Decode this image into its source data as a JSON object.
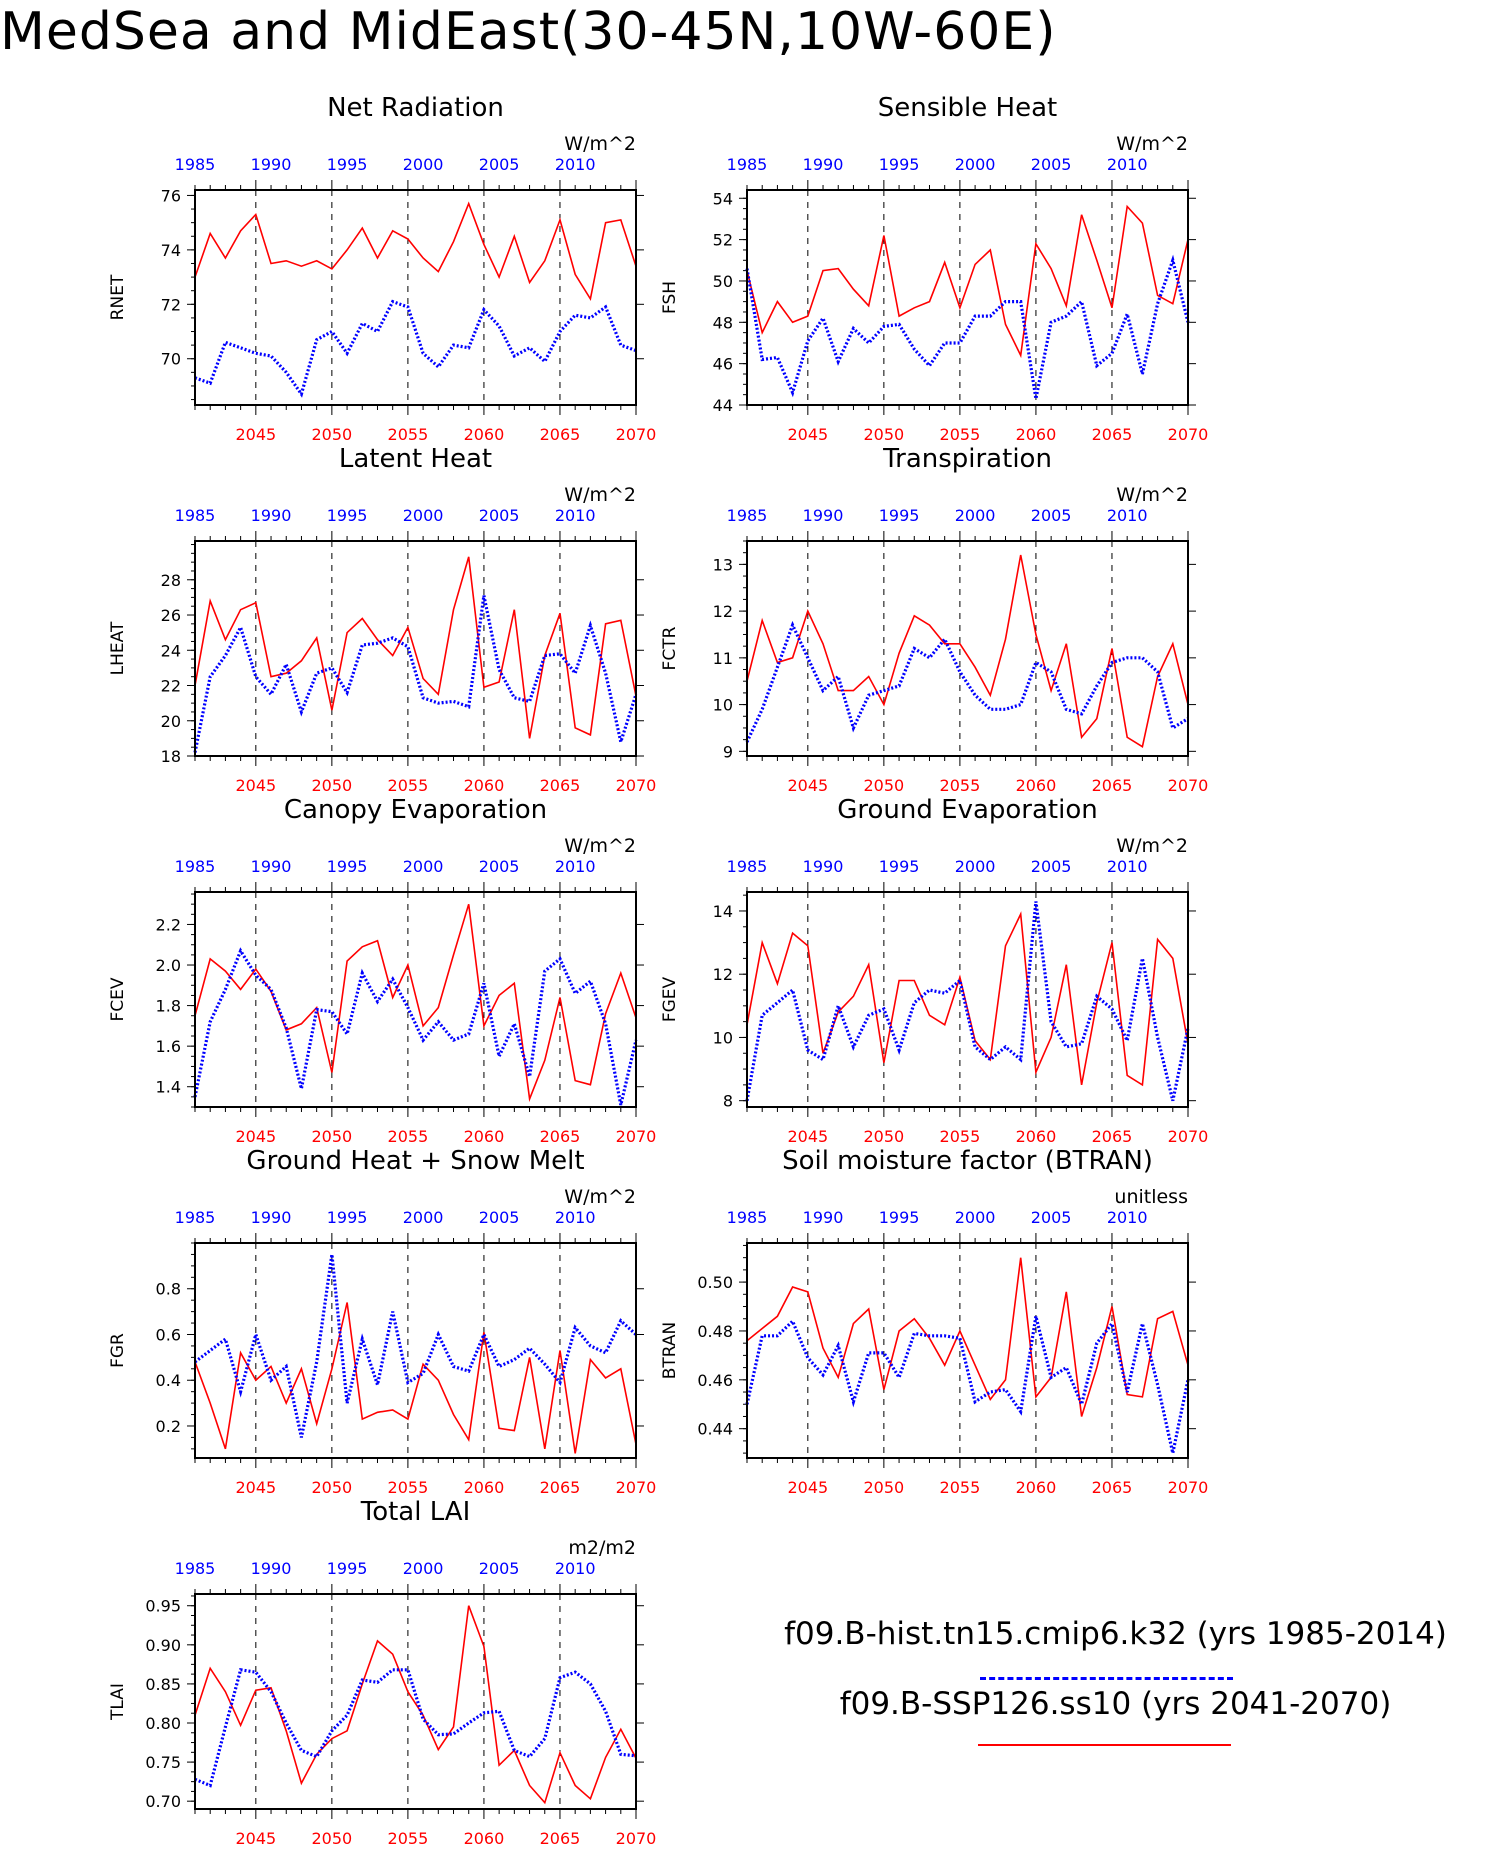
{
  "title": "MedSea and MidEast(30-45N,10W-60E)",
  "legend": {
    "hist_label": "f09.B-hist.tn15.cmip6.k32 (yrs 1985-2014)",
    "ssp_label": "f09.B-SSP126.ss10 (yrs 2041-2070)"
  },
  "colors": {
    "hist": "#0000ff",
    "ssp": "#ff0000",
    "axis": "#000000"
  },
  "chart_data": [
    {
      "type": "line",
      "title": "Net Radiation",
      "ylabel": "RNET",
      "units": "W/m^2",
      "ylim": [
        68.3,
        76.2
      ],
      "yticks": [
        70.0,
        72.0,
        74.0,
        76.0
      ],
      "top_axis_ticks": [
        1985,
        1990,
        1995,
        2000,
        2005,
        2010
      ],
      "bottom_axis_ticks": [
        2045,
        2050,
        2055,
        2060,
        2065,
        2070
      ],
      "series": [
        {
          "values": [
            69.3,
            69.1,
            70.6,
            70.4,
            70.2,
            70.1,
            69.5,
            68.7,
            70.7,
            71.0,
            70.2,
            71.3,
            71.0,
            72.1,
            71.9,
            70.2,
            69.7,
            70.5,
            70.4,
            71.8,
            71.2,
            70.1,
            70.4,
            69.9,
            71.0,
            71.6,
            71.5,
            71.9,
            70.5,
            70.3
          ]
        },
        {
          "values": [
            73.0,
            74.6,
            73.7,
            74.7,
            75.3,
            73.5,
            73.6,
            73.4,
            73.6,
            73.3,
            74.0,
            74.8,
            73.7,
            74.7,
            74.4,
            73.7,
            73.2,
            74.3,
            75.7,
            74.2,
            73.0,
            74.5,
            72.8,
            73.6,
            75.1,
            73.1,
            72.2,
            75.0,
            75.1,
            73.4
          ]
        }
      ]
    },
    {
      "type": "line",
      "title": "Sensible Heat",
      "ylabel": "FSH",
      "units": "W/m^2",
      "ylim": [
        44.0,
        54.4
      ],
      "yticks": [
        44.0,
        46.0,
        48.0,
        50.0,
        52.0,
        54.0
      ],
      "top_axis_ticks": [
        1985,
        1990,
        1995,
        2000,
        2005,
        2010
      ],
      "bottom_axis_ticks": [
        2045,
        2050,
        2055,
        2060,
        2065,
        2070
      ],
      "series": [
        {
          "values": [
            50.6,
            46.2,
            46.3,
            44.6,
            47.1,
            48.2,
            46.1,
            47.7,
            47.0,
            47.8,
            47.9,
            46.7,
            45.9,
            47.0,
            47.0,
            48.3,
            48.3,
            49.0,
            49.0,
            44.3,
            48.0,
            48.3,
            49.0,
            45.9,
            46.5,
            48.4,
            45.5,
            48.9,
            51.0,
            48.0
          ]
        },
        {
          "values": [
            50.5,
            47.5,
            49.0,
            48.0,
            48.3,
            50.5,
            50.6,
            49.6,
            48.8,
            52.2,
            48.3,
            48.7,
            49.0,
            50.9,
            48.7,
            50.8,
            51.5,
            47.9,
            46.4,
            51.8,
            50.6,
            48.8,
            53.2,
            51.0,
            48.7,
            53.6,
            52.8,
            49.3,
            48.9,
            52.0
          ]
        }
      ]
    },
    {
      "type": "line",
      "title": "Latent Heat",
      "ylabel": "LHEAT",
      "units": "W/m^2",
      "ylim": [
        18.0,
        30.2
      ],
      "yticks": [
        18.0,
        20.0,
        22.0,
        24.0,
        26.0,
        28.0
      ],
      "top_axis_ticks": [
        1985,
        1990,
        1995,
        2000,
        2005,
        2010
      ],
      "bottom_axis_ticks": [
        2045,
        2050,
        2055,
        2060,
        2065,
        2070
      ],
      "series": [
        {
          "values": [
            18.2,
            22.5,
            23.7,
            25.3,
            22.5,
            21.5,
            23.2,
            20.5,
            22.7,
            23.0,
            21.6,
            24.3,
            24.4,
            24.7,
            24.2,
            21.3,
            21.0,
            21.1,
            20.8,
            27.1,
            22.9,
            21.3,
            21.1,
            23.7,
            23.8,
            22.7,
            25.4,
            22.7,
            18.8,
            21.5
          ]
        },
        {
          "values": [
            22.0,
            26.8,
            24.6,
            26.3,
            26.7,
            22.5,
            22.7,
            23.4,
            24.7,
            20.6,
            25.0,
            25.8,
            24.6,
            23.7,
            25.3,
            22.4,
            21.5,
            26.3,
            29.3,
            21.9,
            22.2,
            26.3,
            19.0,
            23.7,
            26.1,
            19.6,
            19.2,
            25.5,
            25.7,
            21.4
          ]
        }
      ]
    },
    {
      "type": "line",
      "title": "Transpiration",
      "ylabel": "FCTR",
      "units": "W/m^2",
      "ylim": [
        8.9,
        13.5
      ],
      "yticks": [
        9.0,
        10.0,
        11.0,
        12.0,
        13.0
      ],
      "top_axis_ticks": [
        1985,
        1990,
        1995,
        2000,
        2005,
        2010
      ],
      "bottom_axis_ticks": [
        2045,
        2050,
        2055,
        2060,
        2065,
        2070
      ],
      "series": [
        {
          "values": [
            9.2,
            9.9,
            10.8,
            11.7,
            11.0,
            10.3,
            10.6,
            9.5,
            10.2,
            10.3,
            10.4,
            11.2,
            11.0,
            11.4,
            10.7,
            10.2,
            9.9,
            9.9,
            10.0,
            10.9,
            10.7,
            9.9,
            9.8,
            10.4,
            10.9,
            11.0,
            11.0,
            10.7,
            9.5,
            9.7
          ]
        },
        {
          "values": [
            10.5,
            11.8,
            10.9,
            11.0,
            12.0,
            11.3,
            10.3,
            10.3,
            10.6,
            10.0,
            11.1,
            11.9,
            11.7,
            11.3,
            11.3,
            10.8,
            10.2,
            11.4,
            13.2,
            11.5,
            10.3,
            11.3,
            9.3,
            9.7,
            11.2,
            9.3,
            9.1,
            10.6,
            11.3,
            10.0
          ]
        }
      ]
    },
    {
      "type": "line",
      "title": "Canopy Evaporation",
      "ylabel": "FCEV",
      "units": "W/m^2",
      "ylim": [
        1.3,
        2.36
      ],
      "yticks": [
        1.4,
        1.6,
        1.8,
        2.0,
        2.2
      ],
      "top_axis_ticks": [
        1985,
        1990,
        1995,
        2000,
        2005,
        2010
      ],
      "bottom_axis_ticks": [
        2045,
        2050,
        2055,
        2060,
        2065,
        2070
      ],
      "series": [
        {
          "values": [
            1.35,
            1.72,
            1.88,
            2.07,
            1.95,
            1.88,
            1.69,
            1.39,
            1.78,
            1.77,
            1.66,
            1.96,
            1.82,
            1.93,
            1.79,
            1.63,
            1.72,
            1.63,
            1.66,
            1.91,
            1.55,
            1.71,
            1.45,
            1.97,
            2.03,
            1.86,
            1.92,
            1.71,
            1.31,
            1.63
          ]
        },
        {
          "values": [
            1.75,
            2.03,
            1.97,
            1.88,
            1.98,
            1.87,
            1.68,
            1.71,
            1.79,
            1.47,
            2.02,
            2.09,
            2.12,
            1.84,
            2.0,
            1.7,
            1.79,
            2.05,
            2.3,
            1.7,
            1.85,
            1.91,
            1.34,
            1.53,
            1.84,
            1.43,
            1.41,
            1.76,
            1.96,
            1.74
          ]
        }
      ]
    },
    {
      "type": "line",
      "title": "Ground Evaporation",
      "ylabel": "FGEV",
      "units": "W/m^2",
      "ylim": [
        7.8,
        14.6
      ],
      "yticks": [
        8,
        10,
        12,
        14
      ],
      "top_axis_ticks": [
        1985,
        1990,
        1995,
        2000,
        2005,
        2010
      ],
      "bottom_axis_ticks": [
        2045,
        2050,
        2055,
        2060,
        2065,
        2070
      ],
      "series": [
        {
          "values": [
            8.0,
            10.7,
            11.1,
            11.5,
            9.6,
            9.3,
            11.0,
            9.7,
            10.7,
            10.9,
            9.6,
            11.1,
            11.5,
            11.4,
            11.8,
            9.7,
            9.3,
            9.7,
            9.3,
            14.3,
            10.5,
            9.7,
            9.8,
            11.3,
            10.9,
            9.9,
            12.5,
            10.0,
            8.0,
            10.3
          ]
        },
        {
          "values": [
            10.4,
            13.0,
            11.7,
            13.3,
            12.9,
            9.5,
            10.8,
            11.3,
            12.3,
            9.2,
            11.8,
            11.8,
            10.7,
            10.4,
            11.9,
            9.9,
            9.3,
            12.9,
            13.9,
            8.9,
            10.0,
            12.3,
            8.5,
            11.1,
            13.0,
            8.8,
            8.5,
            13.1,
            12.5,
            9.8
          ]
        }
      ]
    },
    {
      "type": "line",
      "title": "Ground Heat + Snow Melt",
      "ylabel": "FGR",
      "units": "W/m^2",
      "ylim": [
        0.06,
        1.0
      ],
      "yticks": [
        0.2,
        0.4,
        0.6,
        0.8
      ],
      "top_axis_ticks": [
        1985,
        1990,
        1995,
        2000,
        2005,
        2010
      ],
      "bottom_axis_ticks": [
        2045,
        2050,
        2055,
        2060,
        2065,
        2070
      ],
      "series": [
        {
          "values": [
            0.48,
            0.53,
            0.58,
            0.35,
            0.6,
            0.4,
            0.46,
            0.15,
            0.48,
            0.95,
            0.3,
            0.58,
            0.38,
            0.7,
            0.39,
            0.43,
            0.6,
            0.46,
            0.44,
            0.6,
            0.46,
            0.49,
            0.54,
            0.47,
            0.39,
            0.63,
            0.55,
            0.52,
            0.66,
            0.6
          ]
        },
        {
          "values": [
            0.48,
            0.3,
            0.1,
            0.52,
            0.4,
            0.46,
            0.3,
            0.45,
            0.21,
            0.45,
            0.74,
            0.23,
            0.26,
            0.27,
            0.23,
            0.47,
            0.4,
            0.25,
            0.14,
            0.61,
            0.19,
            0.18,
            0.5,
            0.1,
            0.53,
            0.08,
            0.49,
            0.41,
            0.45,
            0.12
          ]
        }
      ]
    },
    {
      "type": "line",
      "title": "Soil moisture factor (BTRAN)",
      "ylabel": "BTRAN",
      "units": "unitless",
      "ylim": [
        0.428,
        0.516
      ],
      "yticks": [
        0.44,
        0.46,
        0.48,
        0.5
      ],
      "top_axis_ticks": [
        1985,
        1990,
        1995,
        2000,
        2005,
        2010
      ],
      "bottom_axis_ticks": [
        2045,
        2050,
        2055,
        2060,
        2065,
        2070
      ],
      "series": [
        {
          "values": [
            0.45,
            0.478,
            0.478,
            0.484,
            0.469,
            0.462,
            0.474,
            0.451,
            0.471,
            0.471,
            0.461,
            0.479,
            0.478,
            0.478,
            0.477,
            0.451,
            0.455,
            0.456,
            0.447,
            0.486,
            0.461,
            0.465,
            0.45,
            0.475,
            0.483,
            0.455,
            0.483,
            0.458,
            0.43,
            0.46
          ]
        },
        {
          "values": [
            0.476,
            0.481,
            0.486,
            0.498,
            0.496,
            0.473,
            0.461,
            0.483,
            0.489,
            0.456,
            0.48,
            0.485,
            0.477,
            0.466,
            0.48,
            0.466,
            0.452,
            0.46,
            0.51,
            0.453,
            0.461,
            0.496,
            0.445,
            0.465,
            0.49,
            0.454,
            0.453,
            0.485,
            0.488,
            0.466
          ]
        }
      ]
    },
    {
      "type": "line",
      "title": "Total LAI",
      "ylabel": "TLAI",
      "units": "m2/m2",
      "ylim": [
        0.69,
        0.965
      ],
      "yticks": [
        0.7,
        0.75,
        0.8,
        0.85,
        0.9,
        0.95
      ],
      "top_axis_ticks": [
        1985,
        1990,
        1995,
        2000,
        2005,
        2010
      ],
      "bottom_axis_ticks": [
        2045,
        2050,
        2055,
        2060,
        2065,
        2070
      ],
      "series": [
        {
          "values": [
            0.728,
            0.72,
            0.795,
            0.868,
            0.865,
            0.84,
            0.8,
            0.765,
            0.757,
            0.79,
            0.81,
            0.855,
            0.852,
            0.868,
            0.868,
            0.805,
            0.785,
            0.786,
            0.8,
            0.813,
            0.815,
            0.765,
            0.757,
            0.78,
            0.858,
            0.865,
            0.85,
            0.815,
            0.76,
            0.758
          ]
        },
        {
          "values": [
            0.81,
            0.87,
            0.84,
            0.797,
            0.842,
            0.845,
            0.79,
            0.723,
            0.76,
            0.78,
            0.79,
            0.85,
            0.905,
            0.888,
            0.84,
            0.81,
            0.766,
            0.795,
            0.95,
            0.898,
            0.746,
            0.765,
            0.72,
            0.698,
            0.762,
            0.72,
            0.703,
            0.756,
            0.792,
            0.755
          ]
        }
      ]
    }
  ]
}
